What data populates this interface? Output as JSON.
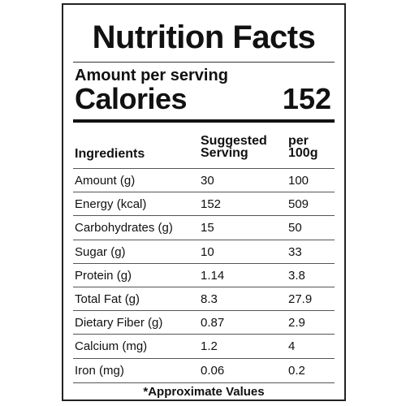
{
  "title": "Nutrition Facts",
  "amount_per_serving": "Amount per serving",
  "calories_label": "Calories",
  "calories_value": "152",
  "headers": {
    "ingredients": "Ingredients",
    "suggested_line1": "Suggested",
    "suggested_line2": "Serving",
    "per_line1": "per",
    "per_line2": "100g"
  },
  "rows": [
    {
      "name": "Amount (g)",
      "serving": "30",
      "per100": "100"
    },
    {
      "name": "Energy (kcal)",
      "serving": "152",
      "per100": "509"
    },
    {
      "name": "Carbohydrates (g)",
      "serving": "15",
      "per100": "50"
    },
    {
      "name": "Sugar (g)",
      "serving": "10",
      "per100": "33"
    },
    {
      "name": "Protein (g)",
      "serving": "1.14",
      "per100": "3.8"
    },
    {
      "name": "Total Fat (g)",
      "serving": "8.3",
      "per100": "27.9"
    },
    {
      "name": "Dietary Fiber (g)",
      "serving": "0.87",
      "per100": "2.9"
    },
    {
      "name": "Calcium (mg)",
      "serving": "1.2",
      "per100": "4"
    },
    {
      "name": "Iron (mg)",
      "serving": "0.06",
      "per100": "0.2"
    }
  ],
  "footnote": "*Approximate Values"
}
